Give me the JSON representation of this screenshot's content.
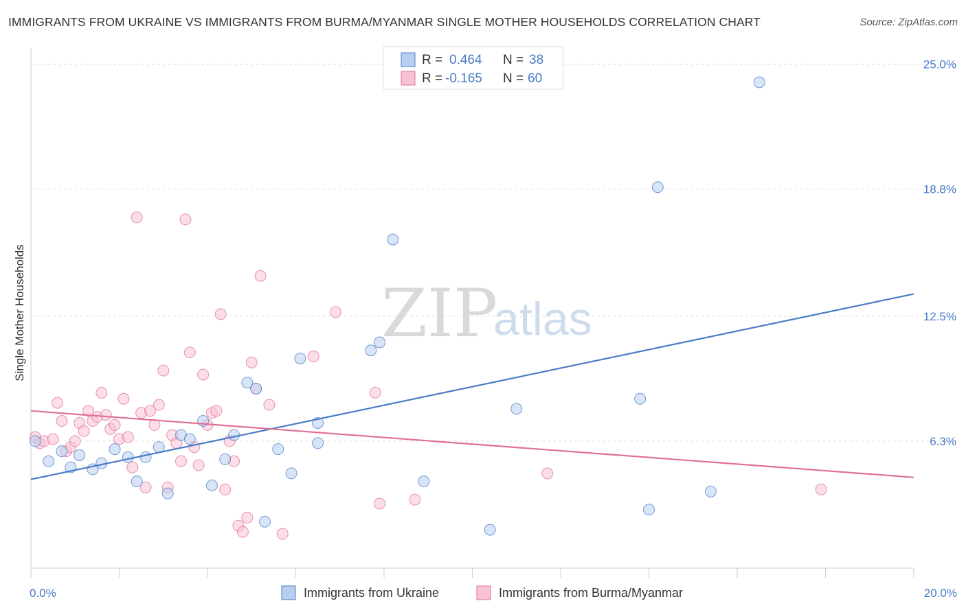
{
  "header": {
    "title": "IMMIGRANTS FROM UKRAINE VS IMMIGRANTS FROM BURMA/MYANMAR SINGLE MOTHER HOUSEHOLDS CORRELATION CHART",
    "source": "Source: ZipAtlas.com"
  },
  "watermark": {
    "zip": "ZIP",
    "atlas": "atlas"
  },
  "legend": {
    "rows": [
      {
        "r_label": "R = ",
        "r_value": "0.464",
        "n_label": "N = ",
        "n_value": "38"
      },
      {
        "r_label": "R = ",
        "r_value": "-0.165",
        "n_label": "N = ",
        "n_value": "60"
      }
    ]
  },
  "chart_data": {
    "type": "scatter",
    "title": "IMMIGRANTS FROM UKRAINE VS IMMIGRANTS FROM BURMA/MYANMAR SINGLE MOTHER HOUSEHOLDS CORRELATION CHART",
    "ylabel": "Single Mother Households",
    "xlabel": "",
    "xlim": [
      0,
      20
    ],
    "ylim": [
      0,
      25.8
    ],
    "x_tick_labels": [
      "0.0%",
      "20.0%"
    ],
    "y_ticks": [
      6.3,
      12.5,
      18.8,
      25.0
    ],
    "y_tick_labels": [
      "6.3%",
      "12.5%",
      "18.8%",
      "25.0%"
    ],
    "grid": true,
    "legend_position": "top-center",
    "colors": {
      "ukraine": "#4a7bc8",
      "burma": "#e07098",
      "ukraine_fill": "#b8d0f0",
      "burma_fill": "#f7c3d3"
    },
    "series": [
      {
        "name": "Immigrants from Ukraine",
        "r": 0.464,
        "n": 38,
        "trend": [
          [
            0,
            4.4
          ],
          [
            20,
            13.6
          ]
        ],
        "points": [
          [
            0.1,
            6.3
          ],
          [
            0.4,
            5.3
          ],
          [
            0.7,
            5.8
          ],
          [
            0.9,
            5.0
          ],
          [
            1.1,
            5.6
          ],
          [
            1.4,
            4.9
          ],
          [
            1.6,
            5.2
          ],
          [
            1.9,
            5.9
          ],
          [
            2.2,
            5.5
          ],
          [
            2.4,
            4.3
          ],
          [
            2.6,
            5.5
          ],
          [
            2.9,
            6.0
          ],
          [
            3.1,
            3.7
          ],
          [
            3.4,
            6.6
          ],
          [
            3.6,
            6.4
          ],
          [
            3.9,
            7.3
          ],
          [
            4.1,
            4.1
          ],
          [
            4.4,
            5.4
          ],
          [
            4.6,
            6.6
          ],
          [
            4.9,
            9.2
          ],
          [
            5.1,
            8.9
          ],
          [
            5.3,
            2.3
          ],
          [
            5.6,
            5.9
          ],
          [
            5.9,
            4.7
          ],
          [
            6.1,
            10.4
          ],
          [
            6.5,
            6.2
          ],
          [
            6.5,
            7.2
          ],
          [
            7.7,
            10.8
          ],
          [
            7.9,
            11.2
          ],
          [
            8.2,
            16.3
          ],
          [
            8.9,
            4.3
          ],
          [
            10.4,
            1.9
          ],
          [
            11.0,
            7.9
          ],
          [
            13.8,
            8.4
          ],
          [
            14.0,
            2.9
          ],
          [
            14.2,
            18.9
          ],
          [
            15.4,
            3.8
          ],
          [
            16.5,
            24.1
          ]
        ]
      },
      {
        "name": "Immigrants from Burma/Myanmar",
        "r": -0.165,
        "n": 60,
        "trend": [
          [
            0,
            7.8
          ],
          [
            20,
            4.5
          ]
        ],
        "points": [
          [
            0.1,
            6.5
          ],
          [
            0.2,
            6.2
          ],
          [
            0.3,
            6.3
          ],
          [
            0.5,
            6.4
          ],
          [
            0.6,
            8.2
          ],
          [
            0.7,
            7.3
          ],
          [
            0.8,
            5.8
          ],
          [
            0.9,
            6.0
          ],
          [
            1.0,
            6.3
          ],
          [
            1.1,
            7.2
          ],
          [
            1.2,
            6.8
          ],
          [
            1.3,
            7.8
          ],
          [
            1.4,
            7.3
          ],
          [
            1.5,
            7.5
          ],
          [
            1.6,
            8.7
          ],
          [
            1.7,
            7.6
          ],
          [
            1.8,
            6.9
          ],
          [
            1.9,
            7.1
          ],
          [
            2.0,
            6.4
          ],
          [
            2.1,
            8.4
          ],
          [
            2.2,
            6.5
          ],
          [
            2.3,
            5.0
          ],
          [
            2.4,
            17.4
          ],
          [
            2.5,
            7.7
          ],
          [
            2.6,
            4.0
          ],
          [
            2.7,
            7.8
          ],
          [
            2.8,
            7.1
          ],
          [
            2.9,
            8.1
          ],
          [
            3.0,
            9.8
          ],
          [
            3.1,
            4.0
          ],
          [
            3.2,
            6.6
          ],
          [
            3.3,
            6.2
          ],
          [
            3.4,
            5.3
          ],
          [
            3.5,
            17.3
          ],
          [
            3.6,
            10.7
          ],
          [
            3.7,
            6.0
          ],
          [
            3.8,
            5.1
          ],
          [
            3.9,
            9.6
          ],
          [
            4.0,
            7.1
          ],
          [
            4.1,
            7.7
          ],
          [
            4.2,
            7.8
          ],
          [
            4.3,
            12.6
          ],
          [
            4.4,
            3.9
          ],
          [
            4.5,
            6.3
          ],
          [
            4.6,
            5.3
          ],
          [
            4.7,
            2.1
          ],
          [
            4.8,
            1.8
          ],
          [
            4.9,
            2.5
          ],
          [
            5.0,
            10.2
          ],
          [
            5.1,
            8.9
          ],
          [
            5.2,
            14.5
          ],
          [
            5.4,
            8.1
          ],
          [
            5.7,
            1.7
          ],
          [
            6.4,
            10.5
          ],
          [
            6.9,
            12.7
          ],
          [
            7.8,
            8.7
          ],
          [
            7.9,
            3.2
          ],
          [
            8.7,
            3.4
          ],
          [
            11.7,
            4.7
          ],
          [
            17.9,
            3.9
          ]
        ]
      }
    ]
  },
  "bottom_legend": {
    "items": [
      {
        "label": "Immigrants from Ukraine"
      },
      {
        "label": "Immigrants from Burma/Myanmar"
      }
    ]
  }
}
